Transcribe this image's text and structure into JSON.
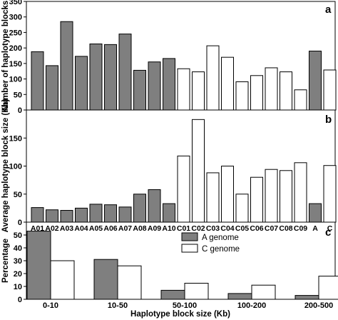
{
  "colors": {
    "a_genome": "#7f7f7f",
    "c_genome": "#ffffff",
    "stroke": "#000000"
  },
  "chart_data": [
    {
      "panel": "a",
      "type": "bar",
      "ylabel": "Number of haplotype blocks",
      "ylim": [
        0,
        350
      ],
      "yticks": [
        0,
        50,
        100,
        150,
        200,
        250,
        300,
        350
      ],
      "categories": [
        "A01",
        "A02",
        "A03",
        "A04",
        "A05",
        "A06",
        "A07",
        "A08",
        "A09",
        "A10",
        "C01",
        "C02",
        "C03",
        "C04",
        "C05",
        "C06",
        "C07",
        "C08",
        "C09",
        "A",
        "C"
      ],
      "values": [
        188,
        143,
        285,
        173,
        213,
        211,
        245,
        128,
        155,
        166,
        133,
        123,
        207,
        170,
        91,
        111,
        136,
        123,
        65,
        190,
        129
      ],
      "groups": [
        "A",
        "A",
        "A",
        "A",
        "A",
        "A",
        "A",
        "A",
        "A",
        "A",
        "C",
        "C",
        "C",
        "C",
        "C",
        "C",
        "C",
        "C",
        "C",
        "A",
        "C"
      ]
    },
    {
      "panel": "b",
      "type": "bar",
      "ylabel": "Average haplotype block size (Kb)",
      "ylim": [
        0,
        200
      ],
      "yticks": [
        0,
        50,
        100,
        150,
        200
      ],
      "categories": [
        "A01",
        "A02",
        "A03",
        "A04",
        "A05",
        "A06",
        "A07",
        "A08",
        "A09",
        "A10",
        "C01",
        "C02",
        "C03",
        "C04",
        "C05",
        "C06",
        "C07",
        "C08",
        "C09",
        "A",
        "C"
      ],
      "values": [
        26,
        22,
        21,
        25,
        32,
        31,
        27,
        50,
        58,
        33,
        118,
        183,
        88,
        100,
        50,
        80,
        94,
        92,
        106,
        33,
        101
      ],
      "groups": [
        "A",
        "A",
        "A",
        "A",
        "A",
        "A",
        "A",
        "A",
        "A",
        "A",
        "C",
        "C",
        "C",
        "C",
        "C",
        "C",
        "C",
        "C",
        "C",
        "A",
        "C"
      ]
    },
    {
      "panel": "c",
      "type": "bar",
      "ylabel": "Percentage",
      "xlabel": "Haplotype block size (Kb)",
      "ylim": [
        0,
        60
      ],
      "yticks": [
        0,
        10,
        20,
        30,
        40,
        50,
        60
      ],
      "categories": [
        "0-10",
        "10-50",
        "50-100",
        "100-200",
        "200-500"
      ],
      "series": [
        {
          "name": "A genome",
          "values": [
            53,
            31,
            7,
            4.5,
            3
          ]
        },
        {
          "name": "C genome",
          "values": [
            30,
            26,
            12.5,
            11,
            18
          ]
        }
      ],
      "legend": "top-center"
    }
  ]
}
